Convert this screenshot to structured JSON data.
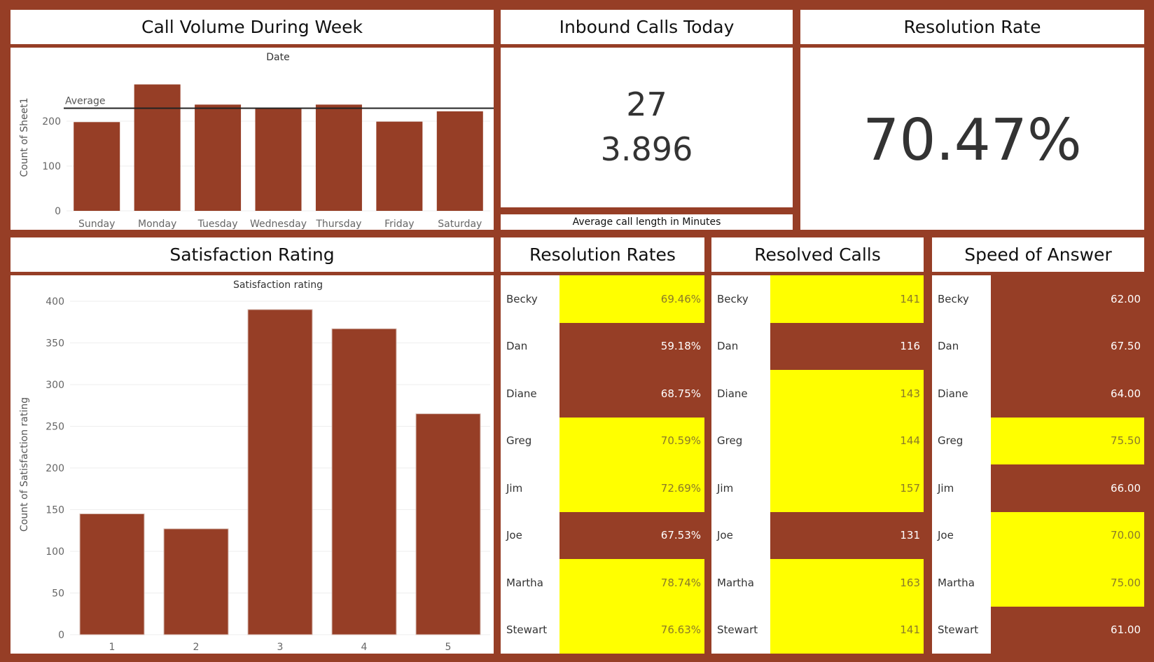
{
  "colors": {
    "brand": "#963e26",
    "bar": "#963e26",
    "highlight": "#ffff00",
    "white": "#ffffff"
  },
  "call_volume": {
    "title": "Call Volume During Week",
    "chart_data": {
      "type": "bar",
      "title": "Date",
      "ylabel": "Count of Sheet1",
      "categories": [
        "Sunday",
        "Monday",
        "Tuesday",
        "Wednesday",
        "Thursday",
        "Friday",
        "Saturday"
      ],
      "values": [
        198,
        282,
        237,
        229,
        237,
        199,
        222
      ],
      "ylim": [
        0,
        300
      ],
      "yticks": [
        0,
        100,
        200
      ],
      "reference_line": {
        "label": "Average",
        "value": 229
      }
    }
  },
  "inbound": {
    "title": "Inbound Calls Today",
    "calls_today": "27",
    "avg_call_length": "3.896",
    "caption": "Average call length in Minutes"
  },
  "resolution_rate": {
    "title": "Resolution Rate",
    "value": "70.47%"
  },
  "satisfaction": {
    "title": "Satisfaction Rating",
    "chart_data": {
      "type": "bar",
      "title": "Satisfaction rating",
      "ylabel": "Count of Satisfaction rating",
      "categories": [
        "1",
        "2",
        "3",
        "4",
        "5"
      ],
      "values": [
        145,
        127,
        390,
        367,
        265
      ],
      "ylim": [
        0,
        400
      ],
      "yticks": [
        0,
        50,
        100,
        150,
        200,
        250,
        300,
        350,
        400
      ]
    }
  },
  "tables": [
    {
      "title": "Resolution Rates",
      "rows": [
        {
          "name": "Becky",
          "value": "69.46%",
          "highlight": true
        },
        {
          "name": "Dan",
          "value": "59.18%",
          "highlight": false
        },
        {
          "name": "Diane",
          "value": "68.75%",
          "highlight": false
        },
        {
          "name": "Greg",
          "value": "70.59%",
          "highlight": true
        },
        {
          "name": "Jim",
          "value": "72.69%",
          "highlight": true
        },
        {
          "name": "Joe",
          "value": "67.53%",
          "highlight": false
        },
        {
          "name": "Martha",
          "value": "78.74%",
          "highlight": true
        },
        {
          "name": "Stewart",
          "value": "76.63%",
          "highlight": true
        }
      ]
    },
    {
      "title": "Resolved Calls",
      "rows": [
        {
          "name": "Becky",
          "value": "141",
          "highlight": true
        },
        {
          "name": "Dan",
          "value": "116",
          "highlight": false
        },
        {
          "name": "Diane",
          "value": "143",
          "highlight": true
        },
        {
          "name": "Greg",
          "value": "144",
          "highlight": true
        },
        {
          "name": "Jim",
          "value": "157",
          "highlight": true
        },
        {
          "name": "Joe",
          "value": "131",
          "highlight": false
        },
        {
          "name": "Martha",
          "value": "163",
          "highlight": true
        },
        {
          "name": "Stewart",
          "value": "141",
          "highlight": true
        }
      ]
    },
    {
      "title": "Speed of Answer",
      "rows": [
        {
          "name": "Becky",
          "value": "62.00",
          "highlight": false
        },
        {
          "name": "Dan",
          "value": "67.50",
          "highlight": false
        },
        {
          "name": "Diane",
          "value": "64.00",
          "highlight": false
        },
        {
          "name": "Greg",
          "value": "75.50",
          "highlight": true
        },
        {
          "name": "Jim",
          "value": "66.00",
          "highlight": false
        },
        {
          "name": "Joe",
          "value": "70.00",
          "highlight": true
        },
        {
          "name": "Martha",
          "value": "75.00",
          "highlight": true
        },
        {
          "name": "Stewart",
          "value": "61.00",
          "highlight": false
        }
      ]
    }
  ]
}
